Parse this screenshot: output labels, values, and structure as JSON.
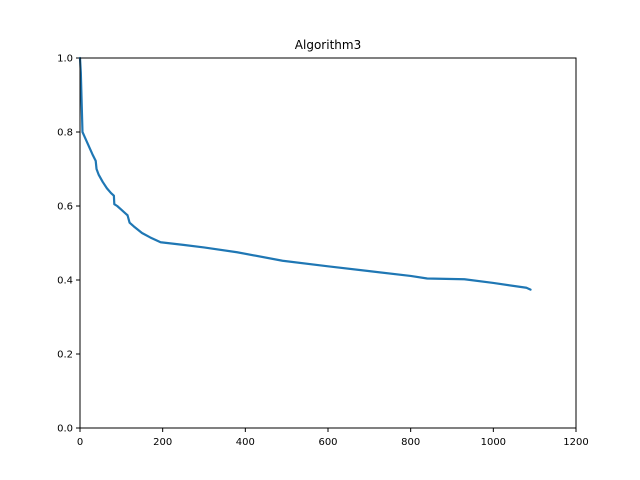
{
  "chart_data": {
    "type": "line",
    "title": "Algorithm3",
    "xlabel": "",
    "ylabel": "",
    "xlim": [
      0,
      1200
    ],
    "ylim": [
      0,
      1.0
    ],
    "x_ticks": [
      "0",
      "200",
      "400",
      "600",
      "800",
      "1000",
      "1200"
    ],
    "y_ticks": [
      "0.0",
      "0.2",
      "0.4",
      "0.6",
      "0.8",
      "1.0"
    ],
    "grid": false,
    "legend": "none",
    "series": [
      {
        "color": "#1f77b4",
        "x": [
          0,
          2,
          4,
          6,
          10,
          20,
          30,
          38,
          40,
          45,
          55,
          65,
          75,
          82,
          83,
          90,
          100,
          110,
          115,
          120,
          130,
          150,
          170,
          195,
          250,
          300,
          380,
          490,
          600,
          700,
          800,
          840,
          930,
          1000,
          1080,
          1090
        ],
        "y": [
          1.0,
          0.96,
          0.88,
          0.8,
          0.79,
          0.765,
          0.74,
          0.722,
          0.7,
          0.685,
          0.665,
          0.648,
          0.635,
          0.628,
          0.605,
          0.6,
          0.59,
          0.58,
          0.575,
          0.555,
          0.545,
          0.527,
          0.515,
          0.502,
          0.495,
          0.488,
          0.475,
          0.452,
          0.437,
          0.424,
          0.411,
          0.404,
          0.402,
          0.392,
          0.379,
          0.374
        ]
      }
    ]
  }
}
